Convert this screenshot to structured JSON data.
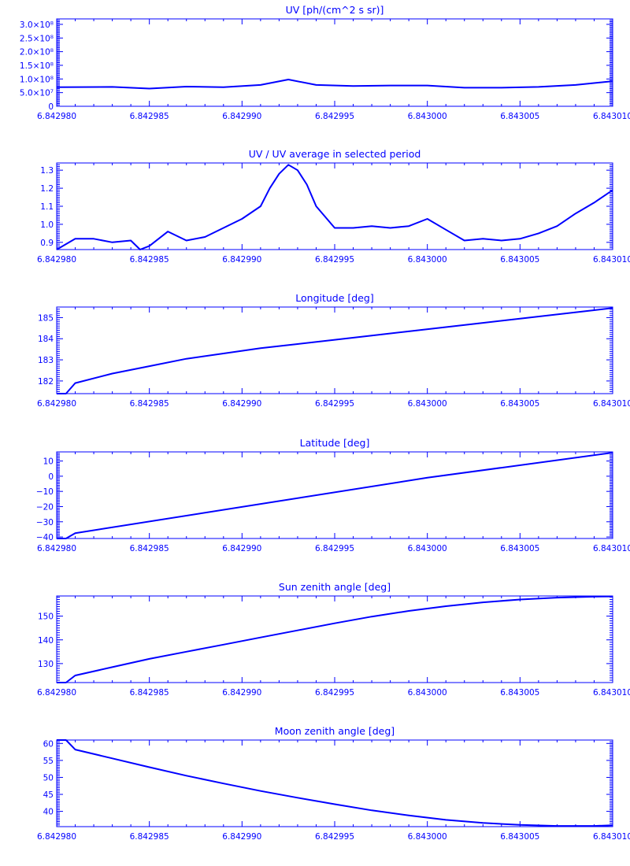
{
  "colors": {
    "axes": "#0000ff",
    "series": "#0000ff",
    "background": "#ffffff"
  },
  "x_tick_labels": [
    "6.842980",
    "6.842985",
    "6.842990",
    "6.842995",
    "6.843000",
    "6.843005",
    "6.843010"
  ],
  "chart_data": [
    {
      "type": "line",
      "title": "UV [ph/(cm^2 s sr)]",
      "xlabel": "",
      "ylabel": "",
      "xlim": [
        6.84298,
        6.84301
      ],
      "ylim": [
        0,
        320000000.0
      ],
      "yticks": [
        0,
        50000000.0,
        100000000.0,
        150000000.0,
        200000000.0,
        250000000.0,
        300000000.0
      ],
      "ytick_labels": [
        "0",
        "5.0×10⁷",
        "1.0×10⁸",
        "1.5×10⁸",
        "2.0×10⁸",
        "2.5×10⁸",
        "3.0×10⁸"
      ],
      "grid": false,
      "x": [
        6.84298,
        6.842983,
        6.842985,
        6.842987,
        6.842989,
        6.842991,
        6.8429925,
        6.842994,
        6.842996,
        6.842998,
        6.843,
        6.843002,
        6.843004,
        6.843006,
        6.843008,
        6.84301
      ],
      "y": [
        70000000.0,
        71000000.0,
        65000000.0,
        72000000.0,
        70000000.0,
        78000000.0,
        98000000.0,
        78000000.0,
        74000000.0,
        76000000.0,
        76000000.0,
        68000000.0,
        68000000.0,
        71000000.0,
        78000000.0,
        92000000.0
      ]
    },
    {
      "type": "line",
      "title": "UV / UV average in selected period",
      "xlabel": "",
      "ylabel": "",
      "xlim": [
        6.84298,
        6.84301
      ],
      "ylim": [
        0.86,
        1.34
      ],
      "yticks": [
        0.9,
        1.0,
        1.1,
        1.2,
        1.3
      ],
      "ytick_labels": [
        "0.9",
        "1.0",
        "1.1",
        "1.2",
        "1.3"
      ],
      "grid": false,
      "x": [
        6.84298,
        6.842981,
        6.842982,
        6.842983,
        6.842984,
        6.8429845,
        6.842985,
        6.842986,
        6.842987,
        6.842988,
        6.842989,
        6.84299,
        6.842991,
        6.8429915,
        6.842992,
        6.8429925,
        6.842993,
        6.8429935,
        6.842994,
        6.842995,
        6.842996,
        6.842997,
        6.842998,
        6.842999,
        6.843,
        6.843001,
        6.843002,
        6.843003,
        6.843004,
        6.843005,
        6.843006,
        6.843007,
        6.843008,
        6.843009,
        6.84301
      ],
      "y": [
        0.86,
        0.92,
        0.92,
        0.9,
        0.91,
        0.86,
        0.88,
        0.96,
        0.91,
        0.93,
        0.98,
        1.03,
        1.1,
        1.2,
        1.28,
        1.33,
        1.3,
        1.22,
        1.1,
        0.98,
        0.98,
        0.99,
        0.98,
        0.99,
        1.03,
        0.97,
        0.91,
        0.92,
        0.91,
        0.92,
        0.95,
        0.99,
        1.06,
        1.12,
        1.19
      ]
    },
    {
      "type": "line",
      "title": "Longitude [deg]",
      "xlabel": "",
      "ylabel": "",
      "xlim": [
        6.84298,
        6.84301
      ],
      "ylim": [
        181.4,
        185.5
      ],
      "yticks": [
        182,
        183,
        184,
        185
      ],
      "ytick_labels": [
        "182",
        "183",
        "184",
        "185"
      ],
      "grid": false,
      "x": [
        6.84298,
        6.8429805,
        6.842981,
        6.842983,
        6.842985,
        6.842987,
        6.842989,
        6.842991,
        6.842993,
        6.842995,
        6.842997,
        6.842999,
        6.843001,
        6.843003,
        6.843005,
        6.843007,
        6.843009,
        6.84301
      ],
      "y": [
        181.4,
        181.4,
        181.9,
        182.35,
        182.7,
        183.05,
        183.3,
        183.55,
        183.75,
        183.95,
        184.15,
        184.35,
        184.55,
        184.75,
        184.95,
        185.15,
        185.35,
        185.45
      ]
    },
    {
      "type": "line",
      "title": "Latitude [deg]",
      "xlabel": "",
      "ylabel": "",
      "xlim": [
        6.84298,
        6.84301
      ],
      "ylim": [
        -41,
        16
      ],
      "yticks": [
        -40,
        -30,
        -20,
        -10,
        0,
        10
      ],
      "ytick_labels": [
        "−40",
        "−30",
        "−20",
        "−10",
        "0",
        "10"
      ],
      "grid": false,
      "x": [
        6.84298,
        6.8429805,
        6.842981,
        6.843,
        6.84301
      ],
      "y": [
        -41,
        -41,
        -37.5,
        -1,
        15.5
      ]
    },
    {
      "type": "line",
      "title": "Sun zenith angle [deg]",
      "xlabel": "",
      "ylabel": "",
      "xlim": [
        6.84298,
        6.84301
      ],
      "ylim": [
        122,
        158.5
      ],
      "yticks": [
        130,
        140,
        150
      ],
      "ytick_labels": [
        "130",
        "140",
        "150"
      ],
      "grid": false,
      "x": [
        6.84298,
        6.8429805,
        6.842981,
        6.842983,
        6.842985,
        6.842987,
        6.842989,
        6.842991,
        6.842993,
        6.842995,
        6.842997,
        6.842999,
        6.843001,
        6.843003,
        6.843005,
        6.843007,
        6.843009,
        6.84301
      ],
      "y": [
        122,
        122,
        125,
        128.5,
        132,
        135,
        138,
        141,
        144,
        147,
        149.8,
        152.2,
        154.2,
        155.8,
        157,
        157.8,
        158.2,
        158.3
      ]
    },
    {
      "type": "line",
      "title": "Moon zenith angle [deg]",
      "xlabel": "",
      "ylabel": "",
      "xlim": [
        6.84298,
        6.84301
      ],
      "ylim": [
        35.5,
        61
      ],
      "yticks": [
        40,
        45,
        50,
        55,
        60
      ],
      "ytick_labels": [
        "40",
        "45",
        "50",
        "55",
        "60"
      ],
      "grid": false,
      "x": [
        6.84298,
        6.8429805,
        6.842981,
        6.842983,
        6.842985,
        6.842987,
        6.842989,
        6.842991,
        6.842993,
        6.842995,
        6.842997,
        6.842999,
        6.843001,
        6.843003,
        6.843005,
        6.843007,
        6.843009,
        6.84301
      ],
      "y": [
        61,
        61,
        58.2,
        55.6,
        53,
        50.5,
        48.2,
        46,
        44,
        42.1,
        40.3,
        38.8,
        37.5,
        36.6,
        36,
        35.7,
        35.7,
        35.9
      ]
    }
  ]
}
